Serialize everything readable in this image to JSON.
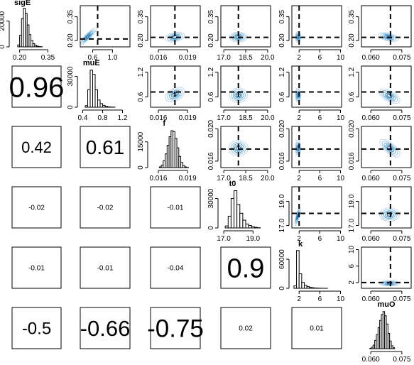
{
  "chart_data": {
    "type": "pairs",
    "variables": [
      "sigE",
      "muE",
      "f",
      "t0",
      "k",
      "muO"
    ],
    "correlations": [
      {
        "row": 2,
        "col": 1,
        "label": "0.96"
      },
      {
        "row": 3,
        "col": 1,
        "label": "0.42"
      },
      {
        "row": 3,
        "col": 2,
        "label": "0.61"
      },
      {
        "row": 4,
        "col": 1,
        "label": "-0.02"
      },
      {
        "row": 4,
        "col": 2,
        "label": "-0.02"
      },
      {
        "row": 4,
        "col": 3,
        "label": "-0.01"
      },
      {
        "row": 5,
        "col": 1,
        "label": "-0.01"
      },
      {
        "row": 5,
        "col": 2,
        "label": "-0.01"
      },
      {
        "row": 5,
        "col": 3,
        "label": "-0.04"
      },
      {
        "row": 5,
        "col": 4,
        "label": "0.9"
      },
      {
        "row": 6,
        "col": 1,
        "label": "-0.5"
      },
      {
        "row": 6,
        "col": 2,
        "label": "-0.66"
      },
      {
        "row": 6,
        "col": 3,
        "label": "-0.75"
      },
      {
        "row": 6,
        "col": 4,
        "label": "0.02"
      },
      {
        "row": 6,
        "col": 5,
        "label": "0.01"
      }
    ],
    "x_axes": [
      {
        "lim": [
          0.16,
          0.42
        ],
        "ticks": [
          0.2,
          0.35
        ],
        "labels": [
          "0.20",
          "0.35"
        ]
      },
      {
        "lim": [
          0.35,
          1.35
        ],
        "ticks": [
          0.6,
          1.0
        ],
        "labels": [
          "0.6",
          "1.0"
        ],
        "diag_ticks": [
          0.4,
          0.8,
          1.2
        ],
        "diag_labels": [
          "0.4",
          "0.8",
          "1.2"
        ]
      },
      {
        "lim": [
          0.0152,
          0.0203
        ],
        "ticks": [
          0.016,
          0.019
        ],
        "labels": [
          "0.016",
          "0.019"
        ]
      },
      {
        "lim": [
          16.8,
          20.2
        ],
        "ticks": [
          17.0,
          18.5,
          20.0
        ],
        "labels": [
          "17.0",
          "18.5",
          "20.0"
        ],
        "diag_ticks": [
          17.0,
          19.0
        ],
        "diag_labels": [
          "17.0",
          "19.0"
        ]
      },
      {
        "lim": [
          0.6,
          10.2
        ],
        "ticks": [
          2,
          6,
          10
        ],
        "labels": [
          "2",
          "6",
          "10"
        ]
      },
      {
        "lim": [
          0.0555,
          0.0795
        ],
        "ticks": [
          0.06,
          0.075
        ],
        "labels": [
          "0.060",
          "0.075"
        ]
      }
    ],
    "y_axes": [
      {
        "lim": [
          0.16,
          0.42
        ],
        "ticks": [
          0.2,
          0.35
        ],
        "labels": [
          "0.20",
          "0.35"
        ]
      },
      {
        "lim": [
          0.35,
          1.35
        ],
        "ticks": [
          0.6,
          1.2
        ],
        "labels": [
          "0.6",
          "1.2"
        ]
      },
      {
        "lim": [
          0.0152,
          0.0203
        ],
        "ticks": [
          0.016,
          0.02
        ],
        "labels": [
          "0.016",
          "0.020"
        ]
      },
      {
        "lim": [
          16.8,
          20.2
        ],
        "ticks": [
          17.0,
          19.0
        ],
        "labels": [
          "17.0",
          "19.0"
        ]
      },
      {
        "lim": [
          0.6,
          10.6
        ],
        "ticks": [
          2,
          6,
          10
        ],
        "labels": [
          "2",
          "6",
          "10"
        ]
      }
    ],
    "histogram_y_axes": [
      {
        "max": 32000,
        "ticks": [
          0,
          20000
        ],
        "labels": [
          "0",
          "20000"
        ]
      },
      {
        "max": 40000,
        "ticks": [
          0,
          30000
        ],
        "labels": [
          "0",
          "30000"
        ]
      },
      {
        "max": 24000,
        "ticks": [
          0,
          15000
        ],
        "labels": [
          "0",
          "15000"
        ]
      },
      {
        "max": 42000,
        "ticks": [
          0,
          30000
        ],
        "labels": [
          "0",
          "30000"
        ]
      },
      {
        "max": 85000,
        "ticks": [
          0,
          60000
        ],
        "labels": [
          "0",
          "60000"
        ]
      },
      {
        "max": 35000,
        "ticks": [],
        "labels": []
      }
    ],
    "histograms": [
      {
        "variable": "sigE",
        "start": 0.19,
        "step": 0.01,
        "counts": [
          1500,
          9000,
          22000,
          30000,
          26000,
          17000,
          9500,
          5000,
          2500,
          1200,
          600,
          250,
          100
        ]
      },
      {
        "variable": "muE",
        "start": 0.45,
        "step": 0.05,
        "counts": [
          1500,
          17000,
          36000,
          32000,
          17000,
          7000,
          3500,
          1800,
          900,
          400,
          200,
          100
        ]
      },
      {
        "variable": "f",
        "start": 0.0161,
        "step": 0.0002,
        "counts": [
          400,
          1500,
          4000,
          8000,
          13000,
          18000,
          21500,
          21000,
          17000,
          11500,
          6500,
          3000,
          1200,
          400,
          100
        ]
      },
      {
        "variable": "t0",
        "start": 17.1,
        "step": 0.2,
        "counts": [
          2000,
          12000,
          30000,
          38000,
          24000,
          15000,
          8000,
          4000,
          2500,
          1200,
          600,
          200
        ]
      },
      {
        "variable": "k",
        "start": 1.0,
        "step": 0.5,
        "counts": [
          5000,
          78000,
          30000,
          12000,
          6000,
          3500,
          2000,
          1100,
          600,
          300,
          150,
          80,
          40
        ]
      },
      {
        "variable": "muO",
        "start": 0.0595,
        "step": 0.0008,
        "counts": [
          300,
          1200,
          3000,
          7000,
          12000,
          18000,
          24000,
          29000,
          31500,
          28000,
          21000,
          13000,
          6500,
          2500,
          800
        ]
      }
    ],
    "reference_values": [
      0.7,
      0.0177,
      18.0,
      2.0,
      0.0695
    ],
    "upper_panels": [
      {
        "row": 1,
        "col": 2,
        "mean": [
          0.5,
          0.225
        ],
        "sd": [
          0.08,
          0.025
        ],
        "rho": 0.9,
        "h": 0.21
      },
      {
        "row": 1,
        "col": 3,
        "mean": [
          0.0177,
          0.222
        ],
        "sd": [
          0.00045,
          0.014
        ],
        "rho": 0.3,
        "h": 0.22
      },
      {
        "row": 1,
        "col": 4,
        "mean": [
          18.0,
          0.222
        ],
        "sd": [
          0.28,
          0.014
        ],
        "rho": 0,
        "h": 0.22
      },
      {
        "row": 1,
        "col": 5,
        "mean": [
          1.8,
          0.222
        ],
        "sd": [
          0.25,
          0.016
        ],
        "rho": 0,
        "h": 0.22
      },
      {
        "row": 1,
        "col": 6,
        "mean": [
          0.0685,
          0.222
        ],
        "sd": [
          0.0022,
          0.013
        ],
        "rho": -0.45,
        "h": 0.22
      },
      {
        "row": 2,
        "col": 3,
        "mean": [
          0.0177,
          0.66
        ],
        "sd": [
          0.00045,
          0.08
        ],
        "rho": 0.4,
        "h": 0.72
      },
      {
        "row": 2,
        "col": 4,
        "mean": [
          18.0,
          0.64
        ],
        "sd": [
          0.28,
          0.08
        ],
        "rho": 0,
        "h": 0.72
      },
      {
        "row": 2,
        "col": 5,
        "mean": [
          1.8,
          0.64
        ],
        "sd": [
          0.25,
          0.08
        ],
        "rho": 0,
        "h": 0.72
      },
      {
        "row": 2,
        "col": 6,
        "mean": [
          0.069,
          0.62
        ],
        "sd": [
          0.0023,
          0.08
        ],
        "rho": -0.6,
        "h": 0.72
      },
      {
        "row": 3,
        "col": 4,
        "mean": [
          18.0,
          0.0176
        ],
        "sd": [
          0.3,
          0.00045
        ],
        "rho": 0,
        "h": 0.0175
      },
      {
        "row": 3,
        "col": 5,
        "mean": [
          1.8,
          0.0176
        ],
        "sd": [
          0.25,
          0.00045
        ],
        "rho": 0,
        "h": 0.0175
      },
      {
        "row": 3,
        "col": 6,
        "mean": [
          0.0692,
          0.0176
        ],
        "sd": [
          0.0022,
          0.0005
        ],
        "rho": -0.7,
        "h": 0.0175
      },
      {
        "row": 4,
        "col": 5,
        "mean": [
          1.7,
          17.75
        ],
        "sd": [
          0.25,
          0.35
        ],
        "rho": 0.8,
        "h": 18.0
      },
      {
        "row": 4,
        "col": 6,
        "mean": [
          0.069,
          17.9
        ],
        "sd": [
          0.0022,
          0.25
        ],
        "rho": 0,
        "h": 18.0
      },
      {
        "row": 5,
        "col": 6,
        "mean": [
          0.069,
          1.8
        ],
        "sd": [
          0.0022,
          0.3
        ],
        "rho": 0,
        "h": 2.0
      }
    ],
    "colors": {
      "contour": [
        "#c6dbef",
        "#9ecae1",
        "#6baed6",
        "#4292c6",
        "#2171b5"
      ],
      "box": "#000000",
      "refline": "#000000",
      "bar_fill": "#ffffff",
      "bar_stroke": "#000000"
    }
  }
}
